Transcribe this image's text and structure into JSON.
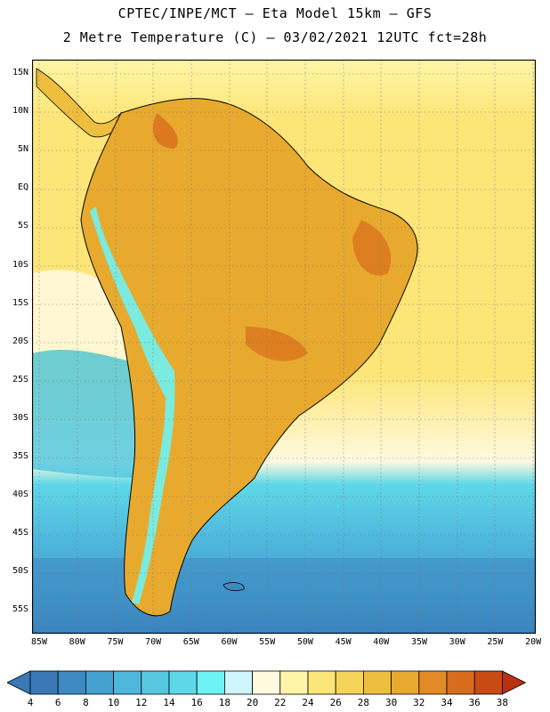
{
  "title_line1": "CPTEC/INPE/MCT –  Eta Model 15km – GFS",
  "title_line2": "2 Metre Temperature (C) – 03/02/2021 12UTC fct=28h",
  "lat_labels": [
    "15N",
    "10N",
    "5N",
    "EQ",
    "5S",
    "10S",
    "15S",
    "20S",
    "25S",
    "30S",
    "35S",
    "40S",
    "45S",
    "50S",
    "55S"
  ],
  "lon_labels": [
    "85W",
    "80W",
    "75W",
    "70W",
    "65W",
    "60W",
    "55W",
    "50W",
    "45W",
    "40W",
    "35W",
    "30W",
    "25W",
    "20W"
  ],
  "colorbar": {
    "labels": [
      "4",
      "6",
      "8",
      "10",
      "12",
      "14",
      "16",
      "18",
      "20",
      "22",
      "24",
      "26",
      "28",
      "30",
      "32",
      "34",
      "36",
      "38"
    ],
    "colors": [
      "#3a78b8",
      "#3d8bc2",
      "#44a0cf",
      "#4fb6dc",
      "#55c8e0",
      "#5ed8e8",
      "#6ef2f2",
      "#cdf5fb",
      "#fff9e0",
      "#fff5a8",
      "#fce678",
      "#f6d45a",
      "#eebe3e",
      "#e8aa2e",
      "#e28a26",
      "#d86c1c",
      "#c84a14",
      "#b8320e"
    ]
  },
  "colors": {
    "ocean_warm": "#fce678",
    "ocean_cool": "#4fb6dc",
    "land": "#e8aa2e",
    "andes": "#6ef2f2"
  }
}
